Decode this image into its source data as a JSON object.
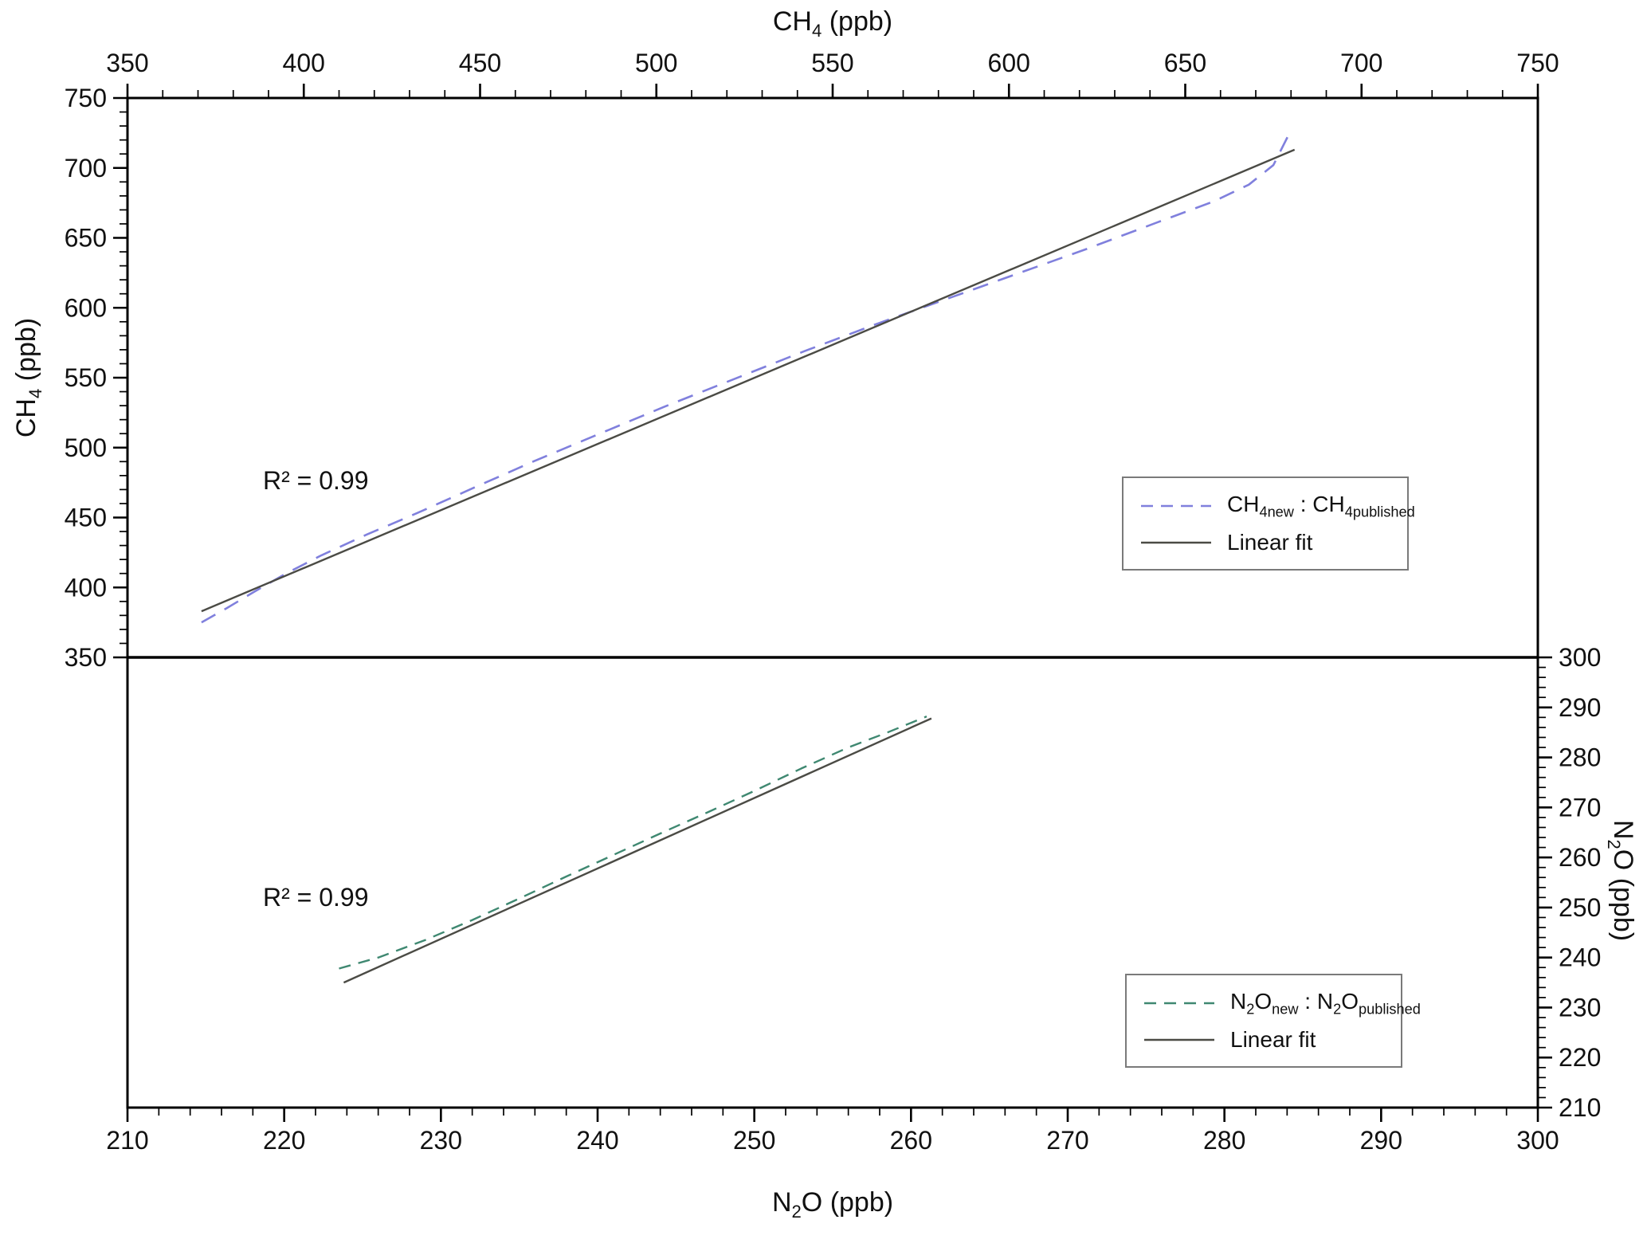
{
  "page": {
    "background": "#ffffff",
    "frame_color": "#000000"
  },
  "annotations": {
    "r2_top": "R² = 0.99",
    "r2_bottom": "R² = 0.99"
  },
  "axis_titles": {
    "top": {
      "parts": [
        {
          "t": "CH"
        },
        {
          "t": "4",
          "sub": true
        },
        {
          "t": " (ppb)"
        }
      ]
    },
    "left": {
      "parts": [
        {
          "t": "CH"
        },
        {
          "t": "4",
          "sub": true
        },
        {
          "t": " (ppb)"
        }
      ]
    },
    "bottom": {
      "parts": [
        {
          "t": "N"
        },
        {
          "t": "2",
          "sub": true
        },
        {
          "t": "O (ppb)"
        }
      ]
    },
    "right": {
      "parts": [
        {
          "t": "N"
        },
        {
          "t": "2",
          "sub": true
        },
        {
          "t": "O (ppb)"
        }
      ]
    }
  },
  "legends": {
    "top": {
      "entries": [
        {
          "parts": [
            {
              "t": "CH"
            },
            {
              "t": "4new",
              "sub": true
            },
            {
              "t": " : CH"
            },
            {
              "t": "4published",
              "sub": true
            }
          ]
        },
        {
          "parts": [
            {
              "t": "Linear fit"
            }
          ]
        }
      ]
    },
    "bottom": {
      "entries": [
        {
          "parts": [
            {
              "t": "N"
            },
            {
              "t": "2",
              "sub": true
            },
            {
              "t": "O"
            },
            {
              "t": "new",
              "sub": true
            },
            {
              "t": " : N"
            },
            {
              "t": "2",
              "sub": true
            },
            {
              "t": "O"
            },
            {
              "t": "published",
              "sub": true
            }
          ]
        },
        {
          "parts": [
            {
              "t": "Linear fit"
            }
          ]
        }
      ]
    }
  },
  "chart_data": [
    {
      "type": "line",
      "panel": "top",
      "title": "",
      "xlabel": "CH4 (ppb)",
      "ylabel": "CH4 (ppb)",
      "xlim": [
        350,
        750
      ],
      "ylim": [
        350,
        750
      ],
      "x_axis_side": "top",
      "y_axis_side": "left",
      "x_ticks": [
        350,
        400,
        450,
        500,
        550,
        600,
        650,
        700,
        750
      ],
      "y_ticks": [
        350,
        400,
        450,
        500,
        550,
        600,
        650,
        700,
        750
      ],
      "x_minor_step": 10,
      "y_minor_step": 10,
      "grid": false,
      "legend_position": "center-right",
      "annotation": {
        "text": "R² = 0.99",
        "x": 390,
        "y": 473
      },
      "series": [
        {
          "name": "CH4new : CH4published",
          "line": "dashed",
          "color": "#8080dd",
          "dash": [
            20,
            13
          ],
          "width": 2.6,
          "x": [
            371,
            378,
            386,
            395,
            405,
            418,
            432,
            448,
            465,
            483,
            502,
            522,
            542,
            562,
            582,
            602,
            622,
            642,
            658,
            668,
            675,
            679
          ],
          "y": [
            375,
            385,
            397,
            410,
            423,
            438,
            453,
            471,
            490,
            509,
            529,
            549,
            569,
            588,
            606,
            624,
            642,
            661,
            676,
            688,
            702,
            722
          ]
        },
        {
          "name": "Linear fit",
          "line": "solid",
          "color": "#4b4b45",
          "width": 2.4,
          "x": [
            371,
            681
          ],
          "y": [
            383,
            713
          ]
        }
      ]
    },
    {
      "type": "line",
      "panel": "bottom",
      "title": "",
      "xlabel": "N2O (ppb)",
      "ylabel": "N2O (ppb)",
      "xlim": [
        210,
        300
      ],
      "ylim": [
        210,
        300
      ],
      "x_axis_side": "bottom",
      "y_axis_side": "right",
      "x_ticks": [
        210,
        220,
        230,
        240,
        250,
        260,
        270,
        280,
        290,
        300
      ],
      "y_ticks": [
        210,
        220,
        230,
        240,
        250,
        260,
        270,
        280,
        290,
        300
      ],
      "x_minor_step": 2,
      "y_minor_step": 2,
      "grid": false,
      "legend_position": "center-right",
      "annotation": {
        "text": "R² = 0.99",
        "x": 219,
        "y": 251
      },
      "series": [
        {
          "name": "N2Onew : N2Opublished",
          "line": "dashed",
          "color": "#3f8871",
          "dash": [
            15,
            10
          ],
          "width": 2.4,
          "x": [
            223.5,
            226,
            229,
            232,
            235,
            238,
            241,
            244,
            247,
            250,
            253,
            256,
            258.5,
            261
          ],
          "y": [
            237.8,
            240,
            243.5,
            247.5,
            251.8,
            256.2,
            260.5,
            264.8,
            269,
            273.3,
            277.8,
            282,
            285,
            288.2
          ]
        },
        {
          "name": "Linear fit",
          "line": "solid",
          "color": "#4b4b45",
          "width": 2.4,
          "x": [
            223.8,
            261.3
          ],
          "y": [
            235.0,
            287.8
          ]
        }
      ]
    }
  ]
}
